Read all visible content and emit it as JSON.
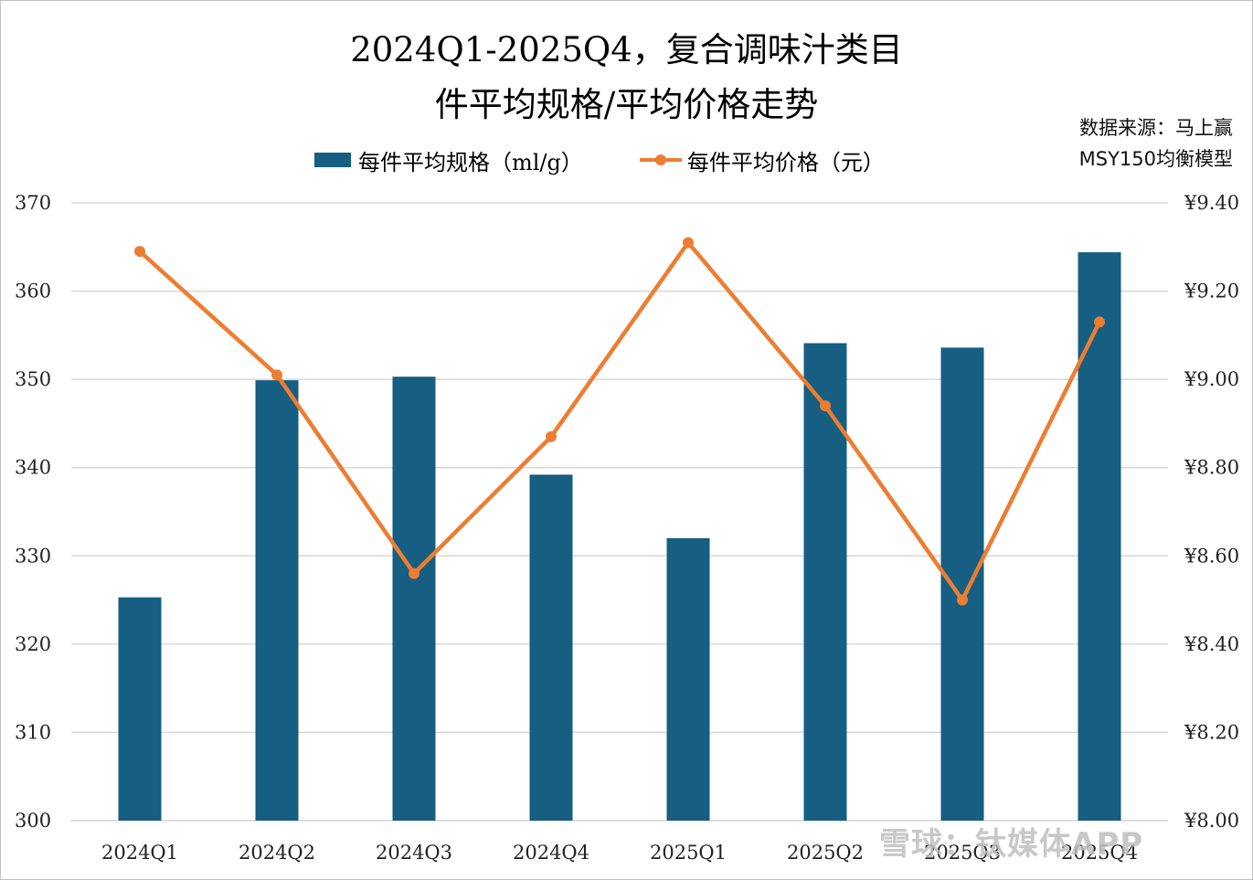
{
  "chart_data": {
    "type": "bar",
    "title_line1": "2024Q1-2025Q4，复合调味汁类目",
    "title_line2": "件平均规格/平均价格走势",
    "source_line1": "数据来源：马上赢",
    "source_line2": "MSY150均衡模型",
    "categories": [
      "2024Q1",
      "2024Q2",
      "2024Q3",
      "2024Q4",
      "2025Q1",
      "2025Q2",
      "2025Q3",
      "2025Q4"
    ],
    "series": [
      {
        "name": "每件平均规格（ml/g）",
        "kind": "bar",
        "axis": "left",
        "color": "#165e82",
        "values": [
          325.3,
          349.9,
          350.3,
          339.2,
          332.0,
          354.1,
          353.6,
          364.4
        ]
      },
      {
        "name": "每件平均价格（元）",
        "kind": "line",
        "axis": "right",
        "color": "#ed7d31",
        "values": [
          9.29,
          9.01,
          8.56,
          8.87,
          9.31,
          8.94,
          8.5,
          9.13
        ]
      }
    ],
    "ylim_left": [
      300,
      370
    ],
    "yticks_left": [
      "370",
      "360",
      "350",
      "340",
      "330",
      "320",
      "310",
      "300"
    ],
    "ylim_right": [
      8.0,
      9.4
    ],
    "yticks_right": [
      "¥9.40",
      "¥9.20",
      "¥9.00",
      "¥8.80",
      "¥8.60",
      "¥8.40",
      "¥8.20",
      "¥8.00"
    ],
    "grid": true,
    "legend_position": "top-center"
  },
  "watermark": "雪球：钛媒体APP"
}
